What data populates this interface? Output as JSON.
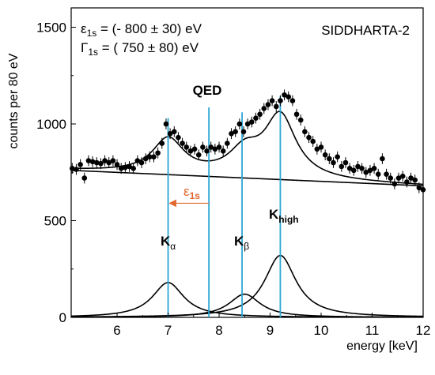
{
  "chart_data": {
    "type": "scatter",
    "xlabel": "energy [keV]",
    "ylabel": "counts per 80 eV",
    "xlim": [
      5.1,
      12.0
    ],
    "ylim": [
      0,
      1600
    ],
    "x_ticks": [
      "6",
      "7",
      "8",
      "9",
      "10",
      "11",
      "12"
    ],
    "y_ticks": [
      "0",
      "500",
      "1000",
      "1500"
    ],
    "grid": false,
    "experiment_label": "SIDDHARTA-2",
    "annotations": {
      "line1": {
        "sym": "ε",
        "sub": "1s",
        "text": " = (- 800 ± 30) eV"
      },
      "line2": {
        "sym": "Γ",
        "sub": "1s",
        "text": " = ( 750 ± 80) eV"
      },
      "qed": "QED",
      "shift": {
        "sym": "ε",
        "sub": "1s"
      },
      "k_alpha": {
        "sym": "K",
        "sub": "α"
      },
      "k_beta": {
        "sym": "K",
        "sub": "β"
      },
      "k_high": {
        "sym": "K",
        "sub": "high"
      }
    },
    "vertical_lines_keV": {
      "k_alpha": 7.0,
      "qed": 7.8,
      "k_beta": 8.45,
      "k_high": 9.2
    },
    "shift_arrow_keV": {
      "from": 7.8,
      "to": 7.0,
      "y": 590
    },
    "colors": {
      "marker_lines": "#2aa6d6",
      "arrow": "#e2672f",
      "data": "#000000"
    },
    "background_line": {
      "x": [
        5.1,
        12.0
      ],
      "y": [
        760,
        680
      ]
    },
    "peaks": [
      {
        "name": "K_alpha",
        "center": 7.0,
        "amplitude": 180,
        "width": 0.375
      },
      {
        "name": "K_beta",
        "center": 8.5,
        "amplitude": 120,
        "width": 0.375
      },
      {
        "name": "K_high",
        "center": 9.2,
        "amplitude": 320,
        "width": 0.375
      }
    ],
    "data_points": {
      "x": [
        5.12,
        5.2,
        5.28,
        5.36,
        5.44,
        5.52,
        5.6,
        5.68,
        5.76,
        5.84,
        5.92,
        6.0,
        6.08,
        6.16,
        6.24,
        6.32,
        6.4,
        6.48,
        6.56,
        6.64,
        6.72,
        6.8,
        6.88,
        6.96,
        7.04,
        7.12,
        7.2,
        7.28,
        7.36,
        7.44,
        7.52,
        7.6,
        7.68,
        7.76,
        7.84,
        7.92,
        8.0,
        8.08,
        8.16,
        8.24,
        8.32,
        8.4,
        8.48,
        8.56,
        8.64,
        8.72,
        8.8,
        8.88,
        8.96,
        9.04,
        9.12,
        9.2,
        9.28,
        9.36,
        9.44,
        9.52,
        9.6,
        9.68,
        9.76,
        9.84,
        9.92,
        10.0,
        10.08,
        10.16,
        10.24,
        10.32,
        10.4,
        10.48,
        10.56,
        10.64,
        10.72,
        10.8,
        10.88,
        10.96,
        11.04,
        11.12,
        11.2,
        11.28,
        11.36,
        11.44,
        11.52,
        11.6,
        11.68,
        11.76,
        11.84,
        11.92,
        12.0
      ],
      "y": [
        770,
        765,
        790,
        720,
        810,
        805,
        800,
        795,
        810,
        800,
        810,
        790,
        770,
        775,
        780,
        770,
        810,
        800,
        820,
        830,
        830,
        850,
        900,
        1000,
        950,
        960,
        930,
        900,
        880,
        860,
        870,
        840,
        880,
        860,
        880,
        870,
        880,
        860,
        900,
        950,
        960,
        1000,
        960,
        1000,
        1010,
        1030,
        1050,
        1080,
        1100,
        1120,
        1090,
        1120,
        1150,
        1140,
        1120,
        1050,
        1020,
        960,
        930,
        910,
        870,
        880,
        840,
        820,
        800,
        830,
        780,
        800,
        770,
        760,
        780,
        770,
        750,
        760,
        770,
        740,
        820,
        740,
        720,
        690,
        720,
        730,
        700,
        720,
        710,
        670,
        660
      ],
      "yerr": 28
    }
  }
}
